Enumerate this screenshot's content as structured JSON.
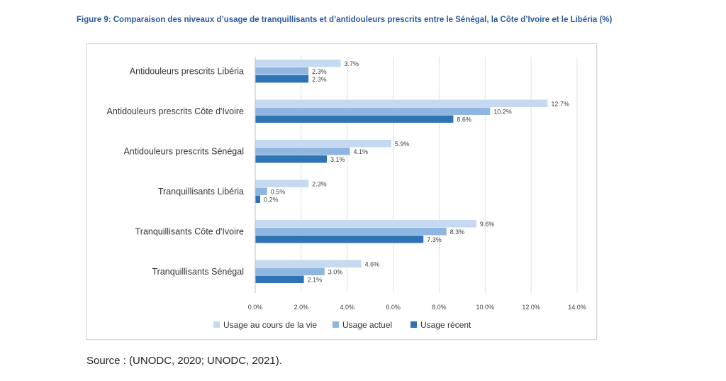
{
  "figure_title": "Figure 9: Comparaison des niveaux d’usage de tranquillisants et d’antidouleurs prescrits entre le Sénégal, la Côte d’Ivoire et le Libéria (%)",
  "source": "Source : (UNODC, 2020; UNODC, 2021).",
  "chart_data": {
    "type": "bar",
    "orientation": "horizontal",
    "title": "",
    "xlabel": "",
    "ylabel": "",
    "categories": [
      "Antidouleurs prescrits Libéria",
      "Antidouleurs prescrits Côte d'Ivoire",
      "Antidouleurs prescrits Sénégal",
      "Tranquillisants Libéria",
      "Tranquillisants Côte d'Ivoire",
      "Tranquillisants Sénégal"
    ],
    "series": [
      {
        "name": "Usage au cours de la vie",
        "color": "#c5daf0",
        "values": [
          3.7,
          12.7,
          5.9,
          2.3,
          9.6,
          4.6
        ],
        "labels": [
          "3.7%",
          "12.7%",
          "5.9%",
          "2.3%",
          "9.6%",
          "4.6%"
        ]
      },
      {
        "name": "Usage actuel",
        "color": "#8fb6e0",
        "values": [
          2.3,
          10.2,
          4.1,
          0.5,
          8.3,
          3.0
        ],
        "labels": [
          "2.3%",
          "10.2%",
          "4.1%",
          "0.5%",
          "8.3%",
          "3.0%"
        ]
      },
      {
        "name": "Usage récent",
        "color": "#2e74b5",
        "values": [
          2.3,
          8.6,
          3.1,
          0.2,
          7.3,
          2.1
        ],
        "labels": [
          "2.3%",
          "8.6%",
          "3.1%",
          "0.2%",
          "7.3%",
          "2.1%"
        ]
      }
    ],
    "xlim": [
      0,
      14
    ],
    "xticks": [
      0,
      2,
      4,
      6,
      8,
      10,
      12,
      14
    ],
    "xtick_labels": [
      "0.0%",
      "2.0%",
      "4.0%",
      "6.0%",
      "8.0%",
      "10.0%",
      "12.0%",
      "14.0%"
    ],
    "grid": true,
    "legend_position": "bottom"
  }
}
